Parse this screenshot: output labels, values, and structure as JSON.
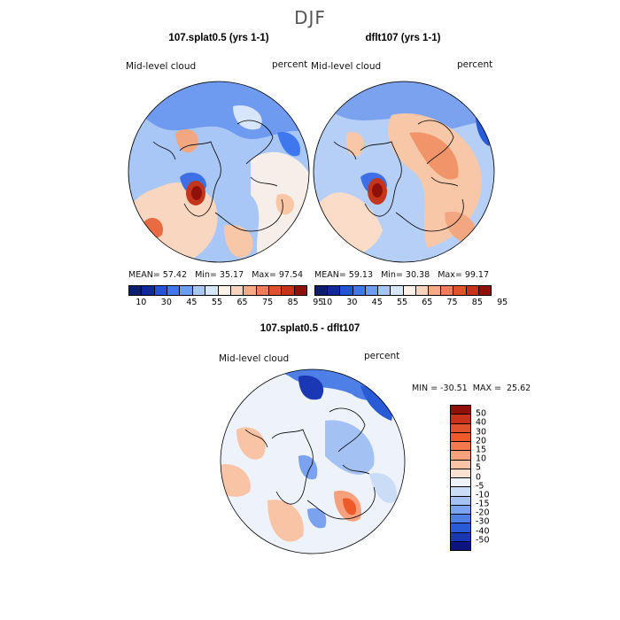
{
  "figure": {
    "season": "DJF",
    "variable_label": "Mid-level cloud",
    "units_label": "percent"
  },
  "panels": [
    {
      "title": "107.splat0.5 (yrs 1-1)",
      "stats": {
        "mean_label": "MEAN=",
        "mean": "57.42",
        "min_label": "Min=",
        "min": "35.17",
        "max_label": "Max=",
        "max": "97.54"
      }
    },
    {
      "title": "dflt107 (yrs 1-1)",
      "stats": {
        "mean_label": "MEAN=",
        "mean": "59.13",
        "min_label": "Min=",
        "min": "30.38",
        "max_label": "Max=",
        "max": "99.17"
      }
    }
  ],
  "diff_panel": {
    "title": "107.splat0.5 - dflt107",
    "stats_text": "MIN = -30.51  MAX =  25.62"
  },
  "colorbar_top": {
    "labels": [
      "10",
      "30",
      "45",
      "55",
      "65",
      "75",
      "85",
      "95"
    ],
    "colors": [
      "#0b1e6e",
      "#10289c",
      "#2455d6",
      "#3f78ee",
      "#6d9cf3",
      "#a7c6f7",
      "#d6e6fb",
      "#fdf1e7",
      "#fbd4bd",
      "#f6ab88",
      "#ef7d55",
      "#e0532d",
      "#c8311a",
      "#8f1109"
    ]
  },
  "colorbar_diff": {
    "labels": [
      "50",
      "40",
      "30",
      "20",
      "15",
      "10",
      "5",
      "0",
      "-5",
      "-10",
      "-15",
      "-20",
      "-30",
      "-40",
      "-50"
    ],
    "colors": [
      "#8f1109",
      "#c8311a",
      "#e0532d",
      "#ef5a2a",
      "#f27a4c",
      "#f6a07c",
      "#f9c3a6",
      "#fbe1d2",
      "#eef3fb",
      "#cbdcf7",
      "#a3c1f3",
      "#7aa2ee",
      "#4d7fe6",
      "#2a5bd6",
      "#1b38b4",
      "#0b1480"
    ]
  },
  "palette": {
    "ocean_blue": "#5b8cea",
    "pale_blue": "#c6dbf8",
    "white": "#f6f2ef",
    "peach": "#f8c7a8",
    "orange": "#ee8a5c",
    "red": "#d2401e",
    "dark_red": "#8f1109",
    "coast": "#000000"
  }
}
